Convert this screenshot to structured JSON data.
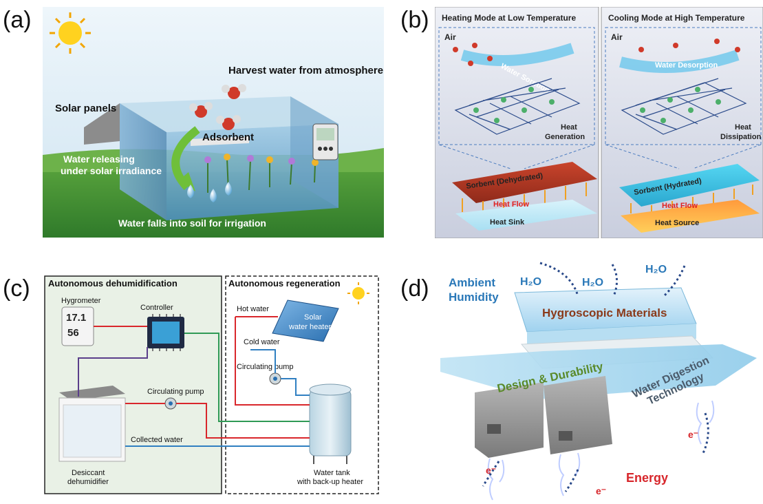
{
  "panel_labels": {
    "a": "(a)",
    "b": "(b)",
    "c": "(c)",
    "d": "(d)"
  },
  "panel_a": {
    "harvest": "Harvest water from atmosphere",
    "solar_panels": "Solar panels",
    "adsorbent": "Adsorbent",
    "release_line1": "Water releasing",
    "release_line2": "under solar irradiance",
    "falls": "Water falls into soil for irrigation"
  },
  "panel_b": {
    "left_title": "Heating Mode at Low Temperature",
    "right_title": "Cooling Mode at High Temperature",
    "air": "Air",
    "sorption": "Water Sorption",
    "desorption": "Water Desorption",
    "heat_gen_1": "Heat",
    "heat_gen_2": "Generation",
    "heat_dis_1": "Heat",
    "heat_dis_2": "Dissipation",
    "sorbent_dehydrated": "Sorbent (Dehydrated)",
    "sorbent_hydrated": "Sorbent (Hydrated)",
    "heat_flow": "Heat Flow",
    "heat_sink": "Heat Sink",
    "heat_source": "Heat Source"
  },
  "panel_c": {
    "dehumid_title": "Autonomous dehumidification",
    "regen_title": "Autonomous regeneration",
    "hygrometer": "Hygrometer",
    "controller": "Controller",
    "display_top": "17.1",
    "display_bottom": "56",
    "hot_water": "Hot water",
    "cold_water": "Cold water",
    "solar_heater_1": "Solar",
    "solar_heater_2": "water heater",
    "circ_pump": "Circulating pump",
    "circ_pump_2": "Circulating pump",
    "collected": "Collected water",
    "dehumidifier_1": "Desiccant",
    "dehumidifier_2": "dehumidifier",
    "tank_1": "Water tank",
    "tank_2": "with back-up heater"
  },
  "panel_d": {
    "ambient_1": "Ambient",
    "ambient_2": "Humidity",
    "h2o": "H₂O",
    "hygroscopic": "Hygroscopic Materials",
    "design": "Design & Durability",
    "digestion_1": "Water Digestion",
    "digestion_2": "Technology",
    "electron": "e⁻",
    "energy": "Energy"
  },
  "colors": {
    "sky": "#dfeef7",
    "grass": "#4f9a3a",
    "box_blue": "#7fb6d8",
    "sorbent_red": "#c9442c",
    "sorbent_cyan": "#3fc6e8",
    "pipe_red": "#d9262b",
    "pipe_blue": "#2f7fc1",
    "pipe_green": "#2f9a55",
    "label_blue": "#2a78b8",
    "label_brown": "#8a3a1a",
    "label_green": "#5a8a2a",
    "energy_red": "#d7262b"
  }
}
